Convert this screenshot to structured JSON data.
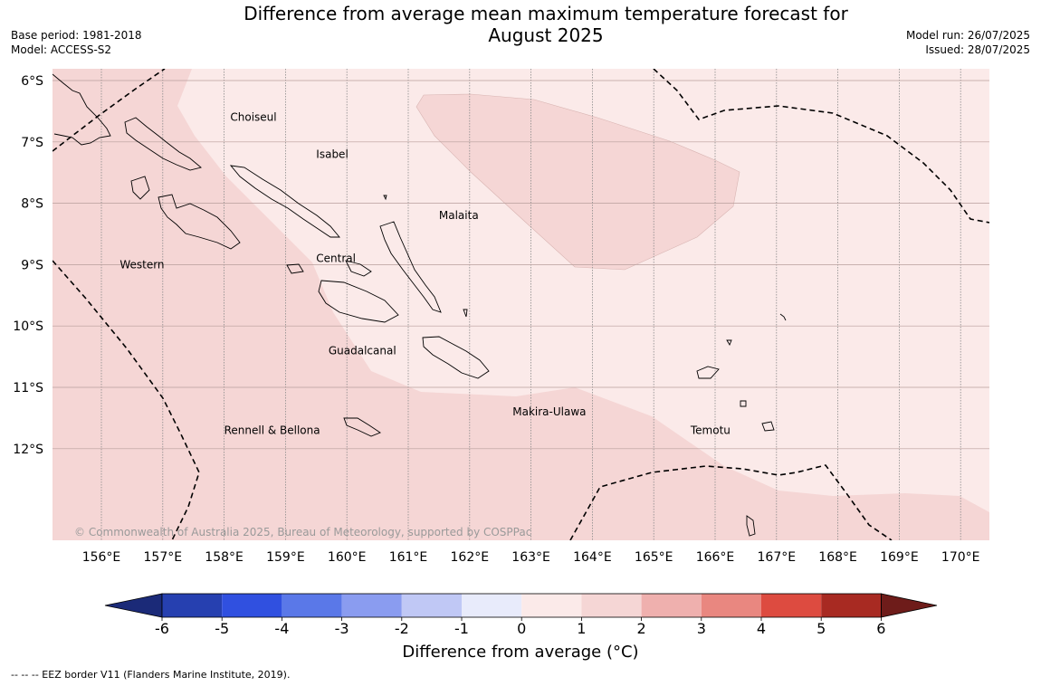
{
  "header": {
    "title_line1": "Difference from average mean maximum temperature forecast for",
    "title_line2": "August 2025",
    "base_period": "Base period: 1981-2018",
    "model": "Model: ACCESS-S2",
    "model_run": "Model run: 26/07/2025",
    "issued": "Issued: 28/07/2025"
  },
  "map": {
    "lon_ticks": [
      "156°E",
      "157°E",
      "158°E",
      "159°E",
      "160°E",
      "161°E",
      "162°E",
      "163°E",
      "164°E",
      "165°E",
      "166°E",
      "167°E",
      "168°E",
      "169°E",
      "170°E"
    ],
    "lat_ticks": [
      "6°S",
      "7°S",
      "8°S",
      "9°S",
      "10°S",
      "11°S",
      "12°S"
    ],
    "regions": [
      {
        "name": "Choiseul",
        "lon": 158.1,
        "lat": -6.6
      },
      {
        "name": "Isabel",
        "lon": 159.5,
        "lat": -7.2
      },
      {
        "name": "Malaita",
        "lon": 161.5,
        "lat": -8.2
      },
      {
        "name": "Western",
        "lon": 156.3,
        "lat": -9.0
      },
      {
        "name": "Central",
        "lon": 159.5,
        "lat": -8.9
      },
      {
        "name": "Guadalcanal",
        "lon": 159.7,
        "lat": -10.4
      },
      {
        "name": "Makira-Ulawa",
        "lon": 162.7,
        "lat": -11.4
      },
      {
        "name": "Rennell & Bellona",
        "lon": 158.0,
        "lat": -11.7
      },
      {
        "name": "Temotu",
        "lon": 165.6,
        "lat": -11.7
      }
    ],
    "copyright": "© Commonwealth of Australia 2025, Bureau of Meteorology, supported by COSPPac",
    "colors": {
      "anomaly_0_1": "#fbeae9",
      "anomaly_1_2": "#f5d6d5",
      "grid": "#8a8a8a",
      "coast": "#000000"
    }
  },
  "colorbar": {
    "ticks": [
      "-6",
      "-5",
      "-4",
      "-3",
      "-2",
      "-1",
      "0",
      "1",
      "2",
      "3",
      "4",
      "5",
      "6"
    ],
    "colors": [
      "#1b2a78",
      "#2640b0",
      "#3050e0",
      "#5a78e8",
      "#8a9cf0",
      "#c0c8f5",
      "#e8ebfb",
      "#fbeae9",
      "#f5d6d5",
      "#efb0ae",
      "#e98780",
      "#dd4b40",
      "#a82a22",
      "#6e1c1a"
    ],
    "label": "Difference from average (°C)"
  },
  "footer": {
    "legend": "--  --  -- EEZ border V11 (Flanders Marine Institute, 2019)."
  }
}
